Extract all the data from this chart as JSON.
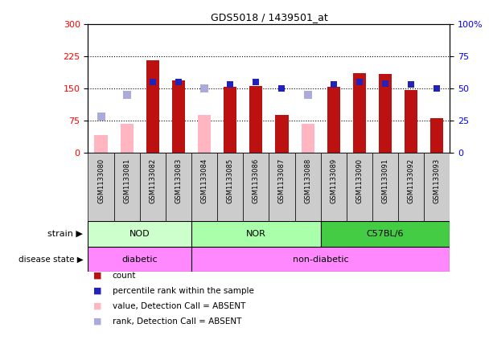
{
  "title": "GDS5018 / 1439501_at",
  "samples": [
    "GSM1133080",
    "GSM1133081",
    "GSM1133082",
    "GSM1133083",
    "GSM1133084",
    "GSM1133085",
    "GSM1133086",
    "GSM1133087",
    "GSM1133088",
    "GSM1133089",
    "GSM1133090",
    "GSM1133091",
    "GSM1133092",
    "GSM1133093"
  ],
  "count_values": [
    null,
    null,
    215,
    168,
    null,
    153,
    155,
    88,
    null,
    154,
    185,
    183,
    147,
    80
  ],
  "absent_value_values": [
    42,
    68,
    null,
    null,
    88,
    null,
    null,
    null,
    68,
    null,
    null,
    null,
    null,
    null
  ],
  "percentile_rank_values": [
    null,
    null,
    55,
    55,
    null,
    53,
    55,
    50,
    null,
    53,
    55,
    54,
    53,
    50
  ],
  "absent_rank_values": [
    28,
    45,
    null,
    null,
    50,
    null,
    null,
    null,
    45,
    null,
    null,
    null,
    null,
    null
  ],
  "strain_groups": [
    {
      "label": "NOD",
      "start": 0,
      "end": 4,
      "color": "#CCFFCC"
    },
    {
      "label": "NOR",
      "start": 4,
      "end": 9,
      "color": "#AAFFAA"
    },
    {
      "label": "C57BL/6",
      "start": 9,
      "end": 14,
      "color": "#44CC44"
    }
  ],
  "disease_groups": [
    {
      "label": "diabetic",
      "start": 0,
      "end": 4,
      "color": "#FF88FF"
    },
    {
      "label": "non-diabetic",
      "start": 4,
      "end": 14,
      "color": "#FF88FF"
    }
  ],
  "ylim_left": [
    0,
    300
  ],
  "ylim_right": [
    0,
    100
  ],
  "yticks_left": [
    0,
    75,
    150,
    225,
    300
  ],
  "yticks_right": [
    0,
    25,
    50,
    75,
    100
  ],
  "ytick_labels_left": [
    "0",
    "75",
    "150",
    "225",
    "300"
  ],
  "ytick_labels_right": [
    "0",
    "25",
    "50",
    "75",
    "100%"
  ],
  "count_color": "#BB1111",
  "absent_value_color": "#FFB6C1",
  "percentile_color": "#2222BB",
  "absent_rank_color": "#AAAADD",
  "bar_width": 0.5,
  "bg_color": "#FFFFFF",
  "xtick_bg_color": "#CCCCCC",
  "strain_nod_color": "#CCFFCC",
  "strain_nor_color": "#AAFFAA",
  "strain_c57_color": "#44CC44",
  "disease_diabetic_color": "#FF88FF",
  "disease_nondiabetic_color": "#FF88FF"
}
